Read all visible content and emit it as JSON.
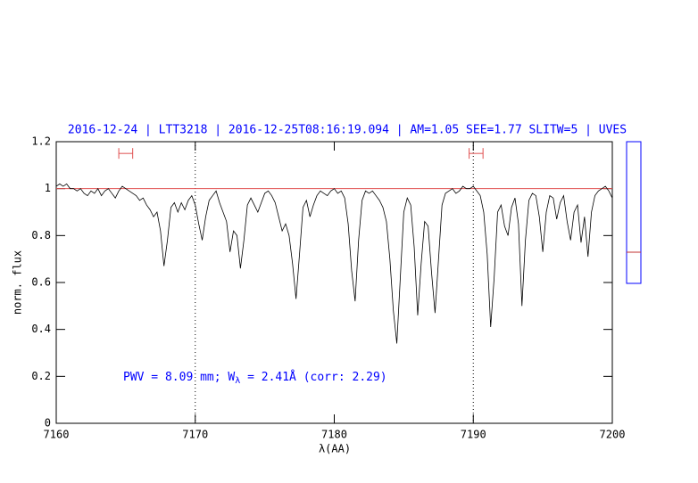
{
  "chart_data": {
    "type": "line",
    "title": "2016-12-24 | LTT3218 | 2016-12-25T08:16:19.094 | AM=1.05 SEE=1.77 SLITW=5 | UVES",
    "xlabel": "λ(AA)",
    "ylabel": "norm. flux",
    "annotation": {
      "parts": [
        "PWV = 8.09 mm; W",
        "λ",
        " = 2.41Å (corr: 2.29)"
      ],
      "color": "#0000ff"
    },
    "xlim": [
      7160,
      7200
    ],
    "xticks": [
      7160,
      7170,
      7180,
      7190,
      7200
    ],
    "ylim": [
      0,
      1.2
    ],
    "yticks": [
      0,
      0.2,
      0.4,
      0.6,
      0.8,
      1,
      1.2
    ],
    "vlines": [
      7170,
      7190
    ],
    "continuum": {
      "value": 1,
      "color": "#e05050"
    },
    "windows": {
      "level": 1.15,
      "color": "#e05050",
      "ranges": [
        [
          7164.5,
          7165.5
        ],
        [
          7189.7,
          7190.7
        ]
      ]
    },
    "x": [
      7160,
      7160.25,
      7160.5,
      7160.75,
      7161,
      7161.25,
      7161.5,
      7161.75,
      7162,
      7162.25,
      7162.5,
      7162.75,
      7163,
      7163.25,
      7163.5,
      7163.75,
      7164,
      7164.25,
      7164.5,
      7164.75,
      7165,
      7165.25,
      7165.5,
      7165.75,
      7166,
      7166.25,
      7166.5,
      7166.75,
      7167,
      7167.25,
      7167.5,
      7167.75,
      7168,
      7168.25,
      7168.5,
      7168.75,
      7169,
      7169.25,
      7169.5,
      7169.75,
      7170,
      7170.25,
      7170.5,
      7170.75,
      7171,
      7171.25,
      7171.5,
      7171.75,
      7172,
      7172.25,
      7172.5,
      7172.75,
      7173,
      7173.25,
      7173.5,
      7173.75,
      7174,
      7174.25,
      7174.5,
      7174.75,
      7175,
      7175.25,
      7175.5,
      7175.75,
      7176,
      7176.25,
      7176.5,
      7176.75,
      7177,
      7177.25,
      7177.5,
      7177.75,
      7178,
      7178.25,
      7178.5,
      7178.75,
      7179,
      7179.25,
      7179.5,
      7179.75,
      7180,
      7180.25,
      7180.5,
      7180.75,
      7181,
      7181.25,
      7181.5,
      7181.75,
      7182,
      7182.25,
      7182.5,
      7182.75,
      7183,
      7183.25,
      7183.5,
      7183.75,
      7184,
      7184.25,
      7184.5,
      7184.75,
      7185,
      7185.25,
      7185.5,
      7185.75,
      7186,
      7186.25,
      7186.5,
      7186.75,
      7187,
      7187.25,
      7187.5,
      7187.75,
      7188,
      7188.25,
      7188.5,
      7188.75,
      7189,
      7189.25,
      7189.5,
      7189.75,
      7190,
      7190.25,
      7190.5,
      7190.75,
      7191,
      7191.25,
      7191.5,
      7191.75,
      7192,
      7192.25,
      7192.5,
      7192.75,
      7193,
      7193.25,
      7193.5,
      7193.75,
      7194,
      7194.25,
      7194.5,
      7194.75,
      7195,
      7195.25,
      7195.5,
      7195.75,
      7196,
      7196.25,
      7196.5,
      7196.75,
      7197,
      7197.25,
      7197.5,
      7197.75,
      7198,
      7198.25,
      7198.5,
      7198.75,
      7199,
      7199.25,
      7199.5,
      7199.75,
      7200
    ],
    "series": [
      {
        "color": "#000000",
        "values": [
          1.01,
          1.02,
          1.01,
          1.02,
          1.0,
          1.0,
          0.99,
          1.0,
          0.98,
          0.97,
          0.99,
          0.98,
          1.0,
          0.97,
          0.99,
          1.0,
          0.98,
          0.96,
          0.99,
          1.01,
          1.0,
          0.99,
          0.98,
          0.97,
          0.95,
          0.96,
          0.93,
          0.91,
          0.88,
          0.9,
          0.82,
          0.67,
          0.78,
          0.92,
          0.94,
          0.9,
          0.94,
          0.91,
          0.95,
          0.97,
          0.93,
          0.85,
          0.78,
          0.88,
          0.95,
          0.97,
          0.99,
          0.94,
          0.9,
          0.86,
          0.73,
          0.82,
          0.8,
          0.66,
          0.78,
          0.93,
          0.96,
          0.93,
          0.9,
          0.94,
          0.98,
          0.99,
          0.97,
          0.94,
          0.88,
          0.82,
          0.85,
          0.8,
          0.68,
          0.53,
          0.72,
          0.92,
          0.95,
          0.88,
          0.93,
          0.97,
          0.99,
          0.98,
          0.97,
          0.99,
          1.0,
          0.98,
          0.99,
          0.96,
          0.85,
          0.65,
          0.52,
          0.78,
          0.95,
          0.99,
          0.98,
          0.99,
          0.97,
          0.95,
          0.92,
          0.86,
          0.7,
          0.48,
          0.34,
          0.62,
          0.9,
          0.96,
          0.93,
          0.75,
          0.46,
          0.68,
          0.86,
          0.84,
          0.64,
          0.47,
          0.7,
          0.93,
          0.98,
          0.99,
          1.0,
          0.98,
          0.99,
          1.01,
          1.0,
          1.0,
          1.01,
          0.99,
          0.97,
          0.9,
          0.72,
          0.41,
          0.62,
          0.9,
          0.93,
          0.84,
          0.8,
          0.92,
          0.96,
          0.85,
          0.5,
          0.78,
          0.95,
          0.98,
          0.97,
          0.88,
          0.73,
          0.9,
          0.97,
          0.96,
          0.87,
          0.94,
          0.97,
          0.86,
          0.78,
          0.9,
          0.93,
          0.77,
          0.88,
          0.71,
          0.9,
          0.97,
          0.99,
          1.0,
          1.01,
          0.99,
          0.96
        ]
      }
    ]
  }
}
